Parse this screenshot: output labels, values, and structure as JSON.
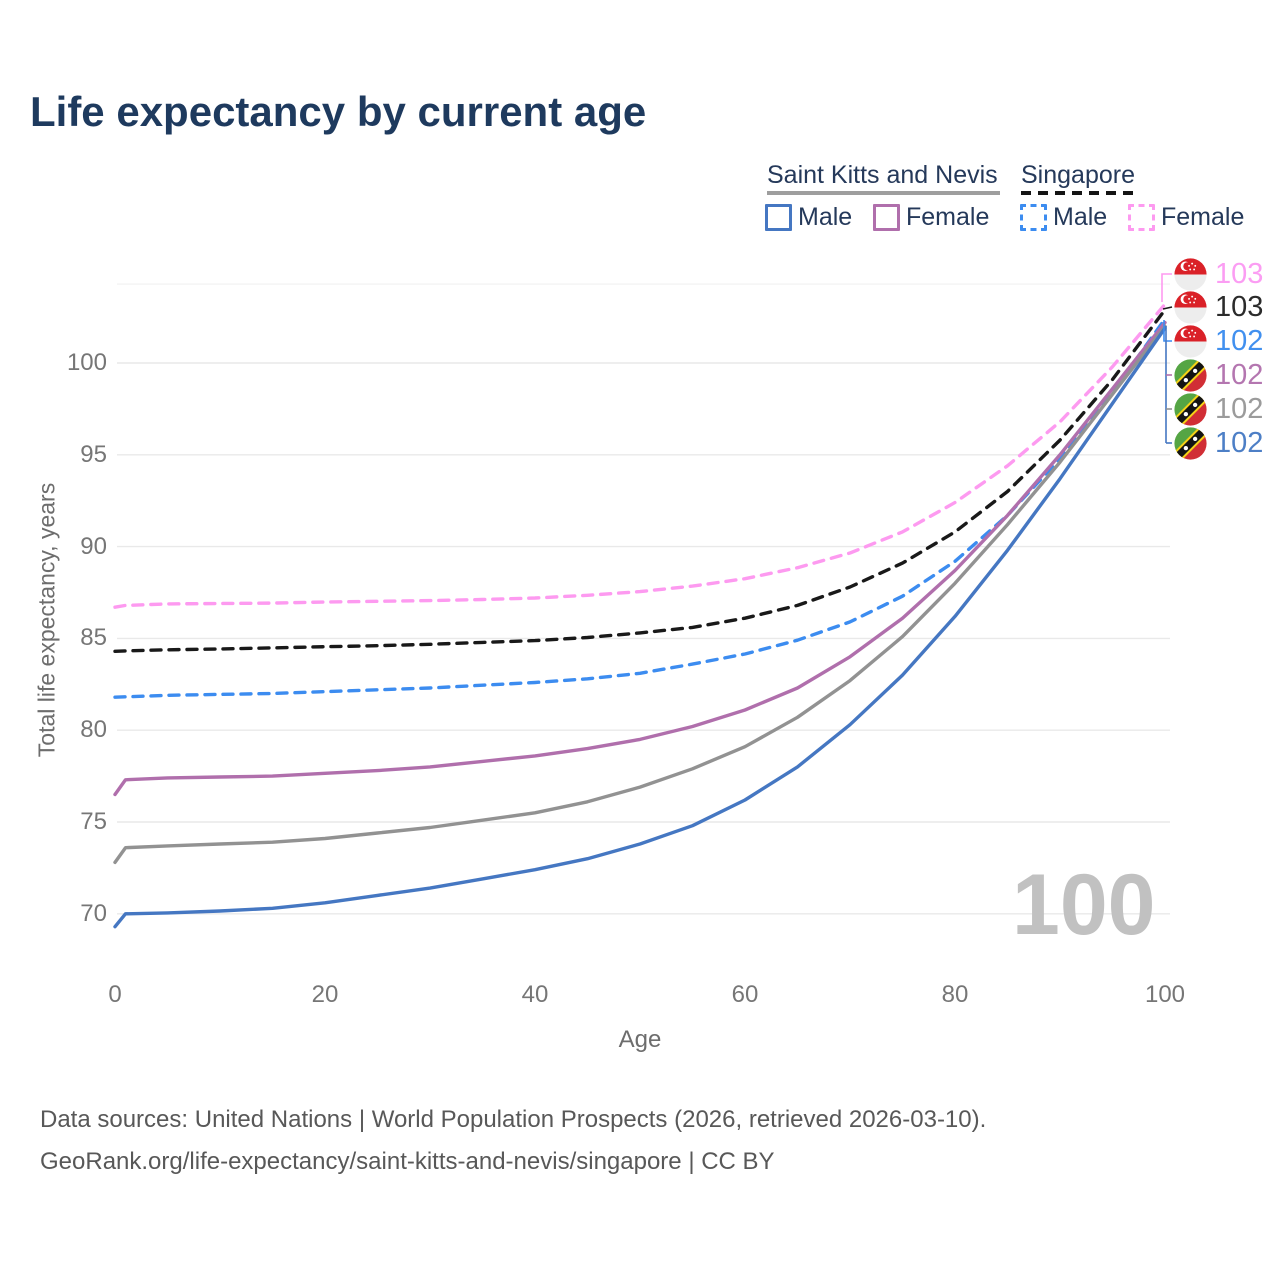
{
  "title": "Life expectancy by current age",
  "legend": {
    "groups": [
      {
        "label": "Saint Kitts and Nevis",
        "line_style": "solid",
        "underline_color": "#9e9e9e"
      },
      {
        "label": "Singapore",
        "line_style": "dashed",
        "underline_color": "#141414"
      }
    ],
    "items": [
      {
        "label": "Male",
        "country": "Saint Kitts and Nevis",
        "color": "#4577c2",
        "dashed": false
      },
      {
        "label": "Female",
        "country": "Saint Kitts and Nevis",
        "color": "#b06fac",
        "dashed": false
      },
      {
        "label": "Male",
        "country": "Singapore",
        "color": "#3c8cf0",
        "dashed": true
      },
      {
        "label": "Female",
        "country": "Singapore",
        "color": "#fd9af0",
        "dashed": true
      }
    ]
  },
  "chart_data": {
    "type": "line",
    "xlabel": "Age",
    "ylabel": "Total life expectancy, years",
    "xticks": [
      0,
      20,
      40,
      60,
      80,
      100
    ],
    "yticks": [
      70,
      75,
      80,
      85,
      90,
      95,
      100
    ],
    "xlim": [
      0,
      100
    ],
    "ylim": [
      67.5,
      104.3
    ],
    "grid": "horizontal",
    "x": [
      0,
      1,
      5,
      10,
      15,
      20,
      25,
      30,
      35,
      40,
      45,
      50,
      55,
      60,
      65,
      70,
      75,
      80,
      85,
      90,
      95,
      100
    ],
    "series": [
      {
        "name": "Singapore Female",
        "country": "Singapore",
        "sex": "Female",
        "color": "#fd9af0",
        "dashed": true,
        "end_label": "103",
        "values": [
          86.7,
          86.8,
          86.88,
          86.9,
          86.92,
          86.98,
          87.02,
          87.06,
          87.12,
          87.2,
          87.35,
          87.55,
          87.85,
          88.25,
          88.85,
          89.65,
          90.8,
          92.4,
          94.4,
          96.8,
          99.8,
          103.2
        ]
      },
      {
        "name": "Singapore",
        "country": "Singapore",
        "sex": "Both sexes",
        "color": "#191919",
        "dashed": true,
        "end_label": "103",
        "values": [
          84.3,
          84.32,
          84.38,
          84.42,
          84.48,
          84.55,
          84.6,
          84.68,
          84.78,
          84.88,
          85.05,
          85.3,
          85.6,
          86.1,
          86.8,
          87.8,
          89.1,
          90.8,
          93.0,
          95.8,
          99.1,
          102.9
        ]
      },
      {
        "name": "Singapore Male",
        "country": "Singapore",
        "sex": "Male",
        "color": "#3c8cf0",
        "dashed": true,
        "end_label": "102",
        "values": [
          81.8,
          81.82,
          81.9,
          81.95,
          82.0,
          82.1,
          82.2,
          82.3,
          82.45,
          82.6,
          82.8,
          83.1,
          83.6,
          84.15,
          84.9,
          85.9,
          87.3,
          89.2,
          91.7,
          94.8,
          98.4,
          102.4
        ]
      },
      {
        "name": "Saint Kitts and Nevis Female",
        "country": "Saint Kitts and Nevis",
        "sex": "Female",
        "color": "#b06fac",
        "dashed": false,
        "end_label": "102",
        "values": [
          76.5,
          77.3,
          77.4,
          77.45,
          77.5,
          77.65,
          77.8,
          78.0,
          78.3,
          78.6,
          79.0,
          79.5,
          80.2,
          81.1,
          82.3,
          84.0,
          86.1,
          88.7,
          91.7,
          95.0,
          98.6,
          102.2
        ]
      },
      {
        "name": "Saint Kitts and Nevis",
        "country": "Saint Kitts and Nevis",
        "sex": "Both sexes",
        "color": "#929292",
        "dashed": false,
        "end_label": "102",
        "values": [
          72.8,
          73.6,
          73.7,
          73.8,
          73.9,
          74.1,
          74.4,
          74.7,
          75.1,
          75.5,
          76.1,
          76.9,
          77.9,
          79.1,
          80.7,
          82.7,
          85.1,
          88.0,
          91.2,
          94.6,
          98.3,
          102.0
        ]
      },
      {
        "name": "Saint Kitts and Nevis Male",
        "country": "Saint Kitts and Nevis",
        "sex": "Male",
        "color": "#4577c2",
        "dashed": false,
        "end_label": "102",
        "values": [
          69.3,
          70.0,
          70.05,
          70.15,
          70.3,
          70.6,
          71.0,
          71.4,
          71.9,
          72.4,
          73.0,
          73.8,
          74.8,
          76.2,
          78.0,
          80.3,
          83.0,
          86.2,
          89.8,
          93.7,
          97.8,
          101.9
        ]
      }
    ]
  },
  "end_labels": {
    "rows": [
      {
        "value": "103",
        "color": "#fb9df3",
        "flag_icon": "singapore-flag"
      },
      {
        "value": "103",
        "color": "#2b2b2b",
        "flag_icon": "singapore-flag"
      },
      {
        "value": "102",
        "color": "#4190ef",
        "flag_icon": "singapore-flag"
      },
      {
        "value": "102",
        "color": "#b476b0",
        "flag_icon": "saint-kitts-and-nevis-flag"
      },
      {
        "value": "102",
        "color": "#9b9b9b",
        "flag_icon": "saint-kitts-and-nevis-flag"
      },
      {
        "value": "102",
        "color": "#4d7fc6",
        "flag_icon": "saint-kitts-and-nevis-flag"
      }
    ]
  },
  "watermark": "100",
  "footer": {
    "line1": "Data sources: United Nations | World Population Prospects (2026, retrieved 2026-03-10).",
    "line2": "GeoRank.org/life-expectancy/saint-kitts-and-nevis/singapore | CC BY"
  },
  "colors": {
    "title_text": "#1e3a5e",
    "axis_text": "#767676",
    "gridline": "#e9e9e9",
    "watermark": "#c1c1c1",
    "footer_text": "#585858"
  }
}
